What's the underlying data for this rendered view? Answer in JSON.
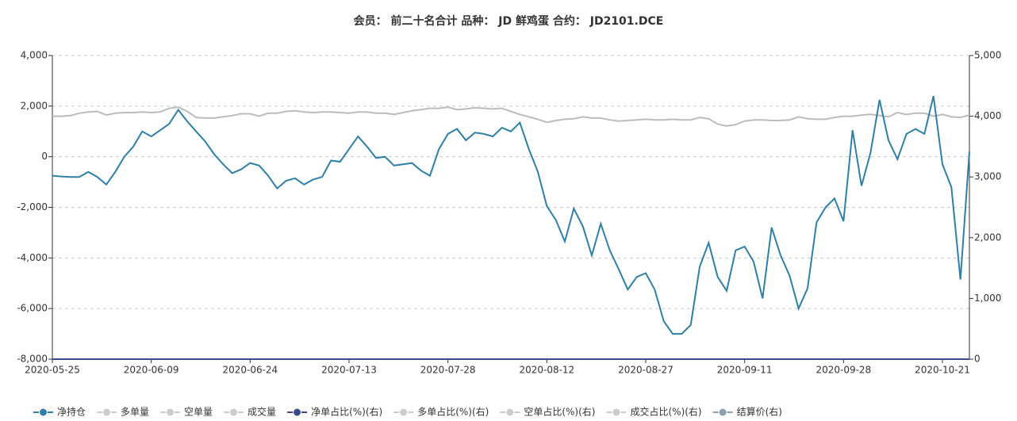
{
  "chart_data": {
    "type": "line",
    "title": "会员： 前二十名合计 品种： JD 鲜鸡蛋 合约： JD2101.DCE",
    "categories": [
      "2020-05-25",
      null,
      null,
      null,
      null,
      null,
      null,
      null,
      null,
      null,
      null,
      "2020-06-09",
      null,
      null,
      null,
      null,
      null,
      null,
      null,
      null,
      null,
      null,
      "2020-06-24",
      null,
      null,
      null,
      null,
      null,
      null,
      null,
      null,
      null,
      null,
      "2020-07-13",
      null,
      null,
      null,
      null,
      null,
      null,
      null,
      null,
      null,
      null,
      "2020-07-28",
      null,
      null,
      null,
      null,
      null,
      null,
      null,
      null,
      null,
      null,
      "2020-08-12",
      null,
      null,
      null,
      null,
      null,
      null,
      null,
      null,
      null,
      null,
      "2020-08-27",
      null,
      null,
      null,
      null,
      null,
      null,
      null,
      null,
      null,
      null,
      "2020-09-11",
      null,
      null,
      null,
      null,
      null,
      null,
      null,
      null,
      null,
      null,
      "2020-09-28",
      null,
      null,
      null,
      null,
      null,
      null,
      null,
      null,
      null,
      null,
      "2020-10-21",
      null,
      null,
      null
    ],
    "series": [
      {
        "name": "净持仓",
        "color": "#2f7fa6",
        "values": [
          -750,
          -780,
          -800,
          -800,
          -600,
          -800,
          -1100,
          -600,
          0,
          400,
          1000,
          800,
          1050,
          1300,
          1850,
          1400,
          1000,
          600,
          100,
          -300,
          -650,
          -500,
          -250,
          -350,
          -750,
          -1250,
          -950,
          -850,
          -1100,
          -900,
          -800,
          -150,
          -200,
          300,
          800,
          400,
          -50,
          0,
          -350,
          -300,
          -250,
          -550,
          -750,
          300,
          900,
          1100,
          650,
          950,
          900,
          800,
          1150,
          1000,
          1350,
          300,
          -600,
          -1950,
          -2500,
          -3350,
          -2050,
          -2750,
          -3900,
          -2650,
          -3700,
          -4450,
          -5250,
          -4750,
          -4600,
          -5250,
          -6500,
          -7000,
          -7000,
          -6650,
          -4350,
          -3400,
          -4750,
          -5300,
          -3700,
          -3550,
          -4150,
          -5600,
          -2800,
          -3900,
          -4700,
          -6000,
          -5200,
          -2600,
          -2000,
          -1650,
          -2550,
          1050,
          -1150,
          150,
          2250,
          650,
          -100,
          900,
          1100,
          900,
          2400,
          -300,
          -1200,
          -4850,
          200
        ]
      },
      {
        "name": "净单占比(%)(右)",
        "color": "#3d4a8a",
        "axis": "y2",
        "values": [
          0,
          0,
          0,
          0,
          0,
          0,
          0,
          0,
          0,
          0,
          0,
          0,
          0,
          0,
          0,
          0,
          0,
          0,
          0,
          0,
          0,
          0,
          0,
          0,
          0,
          0,
          0,
          0,
          0,
          0,
          0,
          0,
          0,
          0,
          0,
          0,
          0,
          0,
          0,
          0,
          0,
          0,
          0,
          0,
          0,
          0,
          0,
          0,
          0,
          0,
          0,
          0,
          0,
          0,
          0,
          0,
          0,
          0,
          0,
          0,
          0,
          0,
          0,
          0,
          0,
          0,
          0,
          0,
          0,
          0,
          0,
          0,
          0,
          0,
          0,
          0,
          0,
          0,
          0,
          0,
          0,
          0,
          0,
          0,
          0,
          0,
          0,
          0,
          0,
          0,
          0,
          0,
          0,
          0,
          0,
          0,
          0,
          0,
          0,
          0,
          0,
          0,
          0
        ]
      },
      {
        "name": "结算价(右)",
        "color": "#bcbcbc",
        "axis": "y2",
        "values": [
          4000,
          4000,
          4010,
          4050,
          4070,
          4080,
          4020,
          4050,
          4060,
          4060,
          4070,
          4060,
          4070,
          4130,
          4150,
          4080,
          3980,
          3970,
          3970,
          3990,
          4010,
          4040,
          4040,
          4000,
          4050,
          4050,
          4080,
          4090,
          4070,
          4060,
          4070,
          4070,
          4060,
          4050,
          4070,
          4070,
          4050,
          4050,
          4030,
          4060,
          4090,
          4110,
          4130,
          4130,
          4150,
          4110,
          4120,
          4140,
          4130,
          4120,
          4130,
          4080,
          4030,
          3990,
          3950,
          3900,
          3930,
          3950,
          3960,
          3990,
          3970,
          3970,
          3940,
          3920,
          3930,
          3940,
          3950,
          3940,
          3940,
          3950,
          3940,
          3940,
          3980,
          3960,
          3870,
          3840,
          3860,
          3920,
          3940,
          3940,
          3930,
          3930,
          3940,
          3990,
          3960,
          3950,
          3950,
          3980,
          4000,
          4000,
          4020,
          4030,
          4010,
          3990,
          4060,
          4030,
          4050,
          4050,
          4000,
          4030,
          3990,
          3980,
          4020
        ]
      }
    ],
    "legend": [
      {
        "name": "净持仓",
        "color": "#2f7fa6",
        "active": true
      },
      {
        "name": "多单量",
        "color": "#cccccc",
        "active": false
      },
      {
        "name": "空单量",
        "color": "#cccccc",
        "active": false
      },
      {
        "name": "成交量",
        "color": "#cccccc",
        "active": false
      },
      {
        "name": "净单占比(%)(右)",
        "color": "#3d4a8a",
        "active": true
      },
      {
        "name": "多单占比(%)(右)",
        "color": "#cccccc",
        "active": false
      },
      {
        "name": "空单占比(%)(右)",
        "color": "#cccccc",
        "active": false
      },
      {
        "name": "成交占比(%)(右)",
        "color": "#cccccc",
        "active": false
      },
      {
        "name": "结算价(右)",
        "color": "#8f9eab",
        "active": true
      }
    ],
    "ylim": [
      -8000,
      4000
    ],
    "yticks": [
      {
        "value": -8000,
        "label": "-8,000"
      },
      {
        "value": -6000,
        "label": "-6,000"
      },
      {
        "value": -4000,
        "label": "-4,000"
      },
      {
        "value": -2000,
        "label": "-2,000"
      },
      0,
      {
        "value": 2000,
        "label": "2,000"
      },
      {
        "value": 4000,
        "label": "4,000"
      }
    ],
    "y2lim": [
      0,
      5000
    ],
    "y2ticks": [
      0,
      {
        "value": 1000,
        "label": "1,000"
      },
      {
        "value": 2000,
        "label": "2,000"
      },
      {
        "value": 3000,
        "label": "3,000"
      },
      {
        "value": 4000,
        "label": "4,000"
      },
      {
        "value": 5000,
        "label": "5,000"
      }
    ],
    "grid": true
  }
}
